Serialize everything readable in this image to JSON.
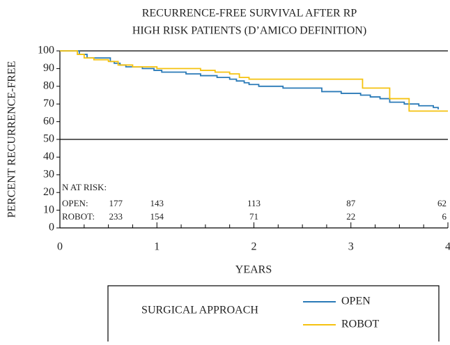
{
  "chart_data": {
    "type": "step",
    "title": [
      "RECURRENCE-FREE SURVIVAL AFTER RP",
      "HIGH RISK PATIENTS (D’AMICO DEFINITION)"
    ],
    "xlabel": "YEARS",
    "ylabel": "PERCENT RECURRENCE-FREE",
    "xlim": [
      0,
      4
    ],
    "ylim": [
      0,
      100
    ],
    "xticks": [
      0,
      1,
      2,
      3,
      4
    ],
    "xminorticks": [
      0.25,
      0.5,
      0.75,
      1.25,
      1.5,
      1.75,
      2.25,
      2.5,
      2.75,
      3.25,
      3.5,
      3.75
    ],
    "yticks": [
      0,
      10,
      20,
      30,
      40,
      50,
      60,
      70,
      80,
      90,
      100
    ],
    "hlines": [
      50,
      100
    ],
    "series": [
      {
        "name": "OPEN",
        "color": "#2a7ab7",
        "x": [
          0,
          0.2,
          0.28,
          0.52,
          0.56,
          0.62,
          0.68,
          0.85,
          0.97,
          1.05,
          1.3,
          1.45,
          1.62,
          1.75,
          1.82,
          1.9,
          1.95,
          2.05,
          2.3,
          2.7,
          2.9,
          3.1,
          3.2,
          3.3,
          3.4,
          3.55,
          3.7,
          3.85,
          3.9
        ],
        "values": [
          100,
          98,
          96,
          94,
          93,
          92,
          91,
          90,
          89,
          88,
          87,
          86,
          85,
          84,
          83,
          82,
          81,
          80,
          79,
          77,
          76,
          75,
          74,
          73,
          71,
          70,
          69,
          68,
          67
        ]
      },
      {
        "name": "ROBOT",
        "color": "#f5c20f",
        "x": [
          0,
          0.18,
          0.25,
          0.35,
          0.5,
          0.6,
          0.75,
          1.0,
          1.45,
          1.6,
          1.75,
          1.85,
          1.95,
          3.12,
          3.4,
          3.6,
          4.0
        ],
        "values": [
          100,
          98,
          96,
          95,
          94,
          92,
          91,
          90,
          89,
          88,
          87,
          85,
          84,
          79,
          73,
          66,
          66
        ]
      }
    ],
    "legend_title": "SURGICAL APPROACH",
    "risk_table": {
      "title": "N AT RISK:",
      "times": [
        0,
        1,
        2,
        3,
        4
      ],
      "rows": [
        {
          "label": "OPEN:",
          "values": [
            177,
            143,
            113,
            87,
            62
          ]
        },
        {
          "label": "ROBOT:",
          "values": [
            233,
            154,
            71,
            22,
            6
          ]
        }
      ]
    }
  }
}
